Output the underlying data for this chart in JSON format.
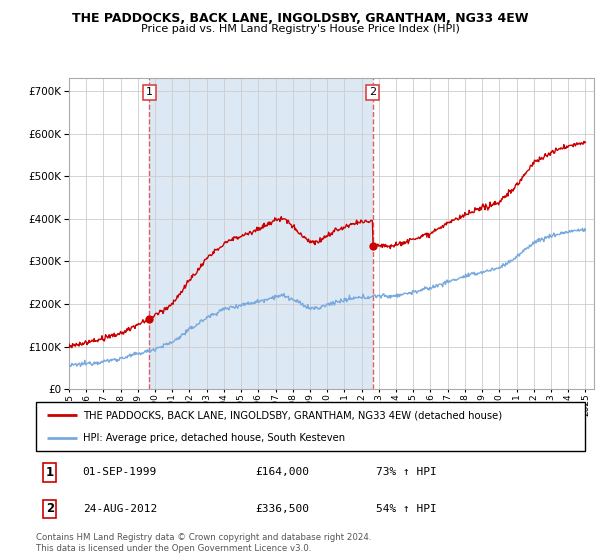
{
  "title": "THE PADDOCKS, BACK LANE, INGOLDSBY, GRANTHAM, NG33 4EW",
  "subtitle": "Price paid vs. HM Land Registry's House Price Index (HPI)",
  "legend_line1": "THE PADDOCKS, BACK LANE, INGOLDSBY, GRANTHAM, NG33 4EW (detached house)",
  "legend_line2": "HPI: Average price, detached house, South Kesteven",
  "annotation1_label": "1",
  "annotation1_date": "01-SEP-1999",
  "annotation1_price": "£164,000",
  "annotation1_hpi": "73% ↑ HPI",
  "annotation2_label": "2",
  "annotation2_date": "24-AUG-2012",
  "annotation2_price": "£336,500",
  "annotation2_hpi": "54% ↑ HPI",
  "footer": "Contains HM Land Registry data © Crown copyright and database right 2024.\nThis data is licensed under the Open Government Licence v3.0.",
  "sale1_year": 1999.667,
  "sale1_value": 164000,
  "sale2_year": 2012.644,
  "sale2_value": 336500,
  "red_line_color": "#cc0000",
  "blue_line_color": "#7aaadd",
  "vline_color": "#dd4444",
  "shade_color": "#dde8f5",
  "background_color": "#ffffff",
  "grid_color": "#cccccc",
  "ylim": [
    0,
    730000
  ],
  "yticks": [
    0,
    100000,
    200000,
    300000,
    400000,
    500000,
    600000,
    700000
  ],
  "xmin": 1995,
  "xmax": 2025.5
}
